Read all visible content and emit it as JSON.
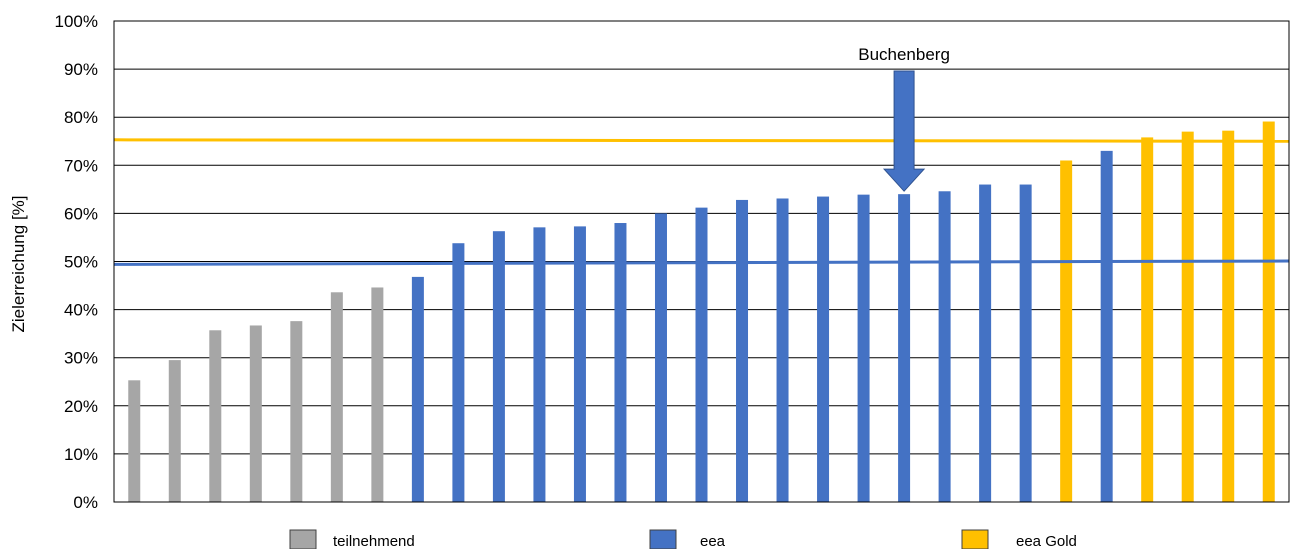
{
  "chart_data": {
    "type": "bar",
    "ylabel": "Zielerreichung [%]",
    "ylim": [
      0,
      100
    ],
    "yticks": [
      "0%",
      "10%",
      "20%",
      "30%",
      "40%",
      "50%",
      "60%",
      "70%",
      "80%",
      "90%",
      "100%"
    ],
    "grid": true,
    "values": [
      25.3,
      29.5,
      35.7,
      36.7,
      37.6,
      43.6,
      44.6,
      46.8,
      53.8,
      56.3,
      57.1,
      57.3,
      58.0,
      60.0,
      61.2,
      62.8,
      63.1,
      63.5,
      63.9,
      64.0,
      64.6,
      66.0,
      66.0,
      71.0,
      73.0,
      75.8,
      77.0,
      77.2,
      79.1
    ],
    "groups": [
      "teilnehmend",
      "teilnehmend",
      "teilnehmend",
      "teilnehmend",
      "teilnehmend",
      "teilnehmend",
      "teilnehmend",
      "eea",
      "eea",
      "eea",
      "eea",
      "eea",
      "eea",
      "eea",
      "eea",
      "eea",
      "eea",
      "eea",
      "eea",
      "eea",
      "eea",
      "eea",
      "eea",
      "eea Gold",
      "eea",
      "eea Gold",
      "eea Gold",
      "eea Gold",
      "eea Gold"
    ],
    "legend": [
      {
        "name": "teilnehmend",
        "color": "#a6a6a6"
      },
      {
        "name": "eea",
        "color": "#4472c4"
      },
      {
        "name": "eea Gold",
        "color": "#ffc000"
      }
    ],
    "legend_position": "bottom",
    "threshold_lines": [
      {
        "series": "eea",
        "value_start": 49.4,
        "value_end": 50.1,
        "color": "#4472c4"
      },
      {
        "series": "eea Gold",
        "value_start": 75.3,
        "value_end": 75.0,
        "color": "#ffc000"
      }
    ],
    "annotation": {
      "text": "Buchenberg",
      "bar_index": 19
    }
  }
}
